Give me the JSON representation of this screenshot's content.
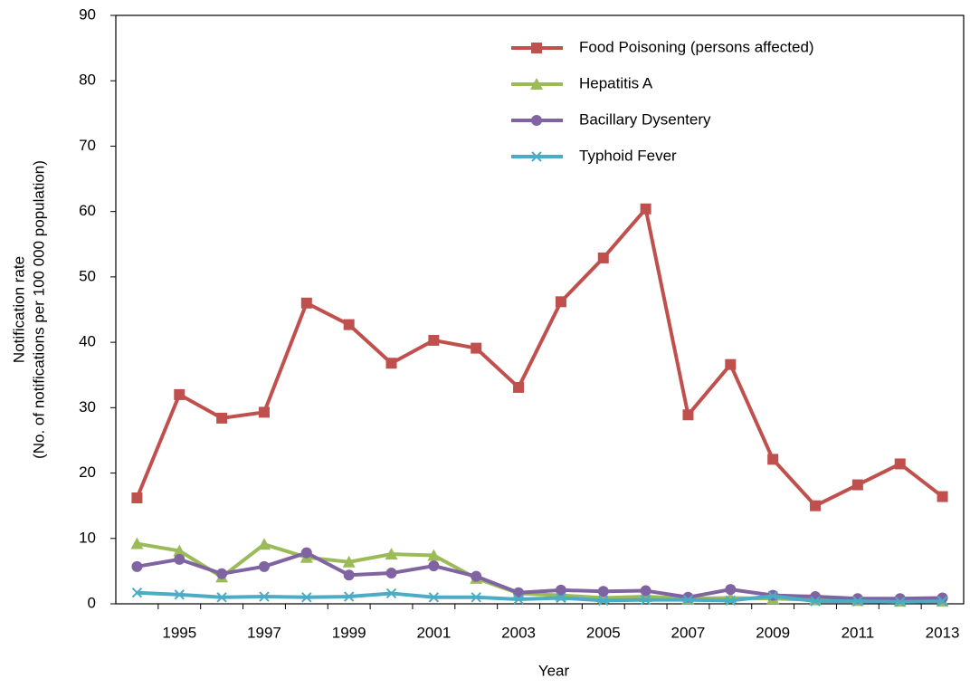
{
  "chart_data": {
    "type": "line",
    "xlabel": "Year",
    "ylabel": [
      "Notification rate",
      "(No. of notifications per 100 000 population)"
    ],
    "categories": [
      null,
      "1995",
      null,
      "1997",
      null,
      "1999",
      null,
      "2001",
      null,
      "2003",
      null,
      "2005",
      null,
      "2007",
      null,
      "2009",
      null,
      "2011",
      null,
      "2013"
    ],
    "series": [
      {
        "name": "Food Poisoning (persons affected)",
        "color": "#c0504d",
        "marker": "square",
        "values": [
          16.2,
          32,
          28.4,
          29.3,
          46,
          42.7,
          36.8,
          40.3,
          39.1,
          33.1,
          46.2,
          52.9,
          60.4,
          28.9,
          36.6,
          22.1,
          15,
          18.2,
          21.4,
          16.4
        ]
      },
      {
        "name": "Hepatitis A",
        "color": "#9bbb59",
        "marker": "triangle",
        "values": [
          9.2,
          8.1,
          4.1,
          9.1,
          7.1,
          6.4,
          7.6,
          7.4,
          3.9,
          1.6,
          1.3,
          0.9,
          1.1,
          0.8,
          0.9,
          0.8,
          0.6,
          0.5,
          0.4,
          0.4
        ]
      },
      {
        "name": "Bacillary Dysentery",
        "color": "#8064a2",
        "marker": "circle",
        "values": [
          5.7,
          6.8,
          4.6,
          5.7,
          7.8,
          4.4,
          4.7,
          5.8,
          4.2,
          1.7,
          2.1,
          1.9,
          2.0,
          1.0,
          2.2,
          1.3,
          1.1,
          0.8,
          0.8,
          0.9
        ]
      },
      {
        "name": "Typhoid Fever",
        "color": "#4bacc6",
        "marker": "x",
        "values": [
          1.7,
          1.4,
          1.0,
          1.1,
          1.0,
          1.1,
          1.6,
          1.0,
          1.0,
          0.7,
          0.9,
          0.5,
          0.6,
          0.6,
          0.5,
          1.2,
          0.4,
          0.4,
          0.3,
          0.4
        ]
      }
    ],
    "ylim": [
      0,
      90
    ],
    "yticks": [
      0,
      10,
      20,
      30,
      40,
      50,
      60,
      70,
      80,
      90
    ],
    "grid": false,
    "legend": "upper right"
  }
}
